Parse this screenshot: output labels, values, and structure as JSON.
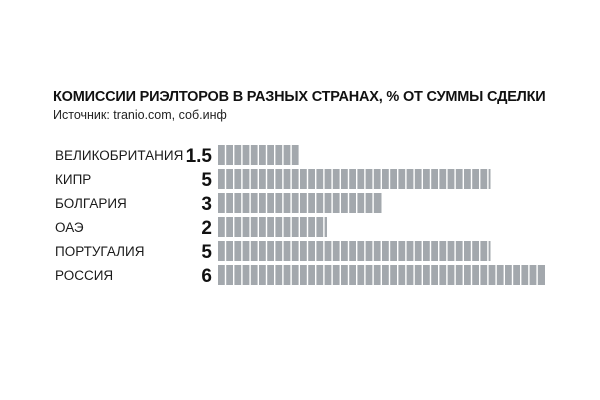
{
  "chart_data": {
    "type": "bar",
    "orientation": "horizontal",
    "title": "КОМИССИИ РИЭЛТОРОВ В РАЗНЫХ СТРАНАХ, % ОТ СУММЫ СДЕЛКИ",
    "subtitle": "Источник: tranio.com, соб.инф",
    "categories": [
      "ВЕЛИКОБРИТАНИЯ",
      "КИПР",
      "БОЛГАРИЯ",
      "ОАЭ",
      "ПОРТУГАЛИЯ",
      "РОССИЯ"
    ],
    "value_labels": [
      "1.5",
      "5",
      "3",
      "2",
      "5",
      "6"
    ],
    "values": [
      1.5,
      5,
      3,
      2,
      5,
      6
    ],
    "xlim": [
      0,
      6
    ],
    "grid": false,
    "legend": "none",
    "bar_color": "#a3a8ad",
    "segment_gap_color": "#ffffff"
  }
}
